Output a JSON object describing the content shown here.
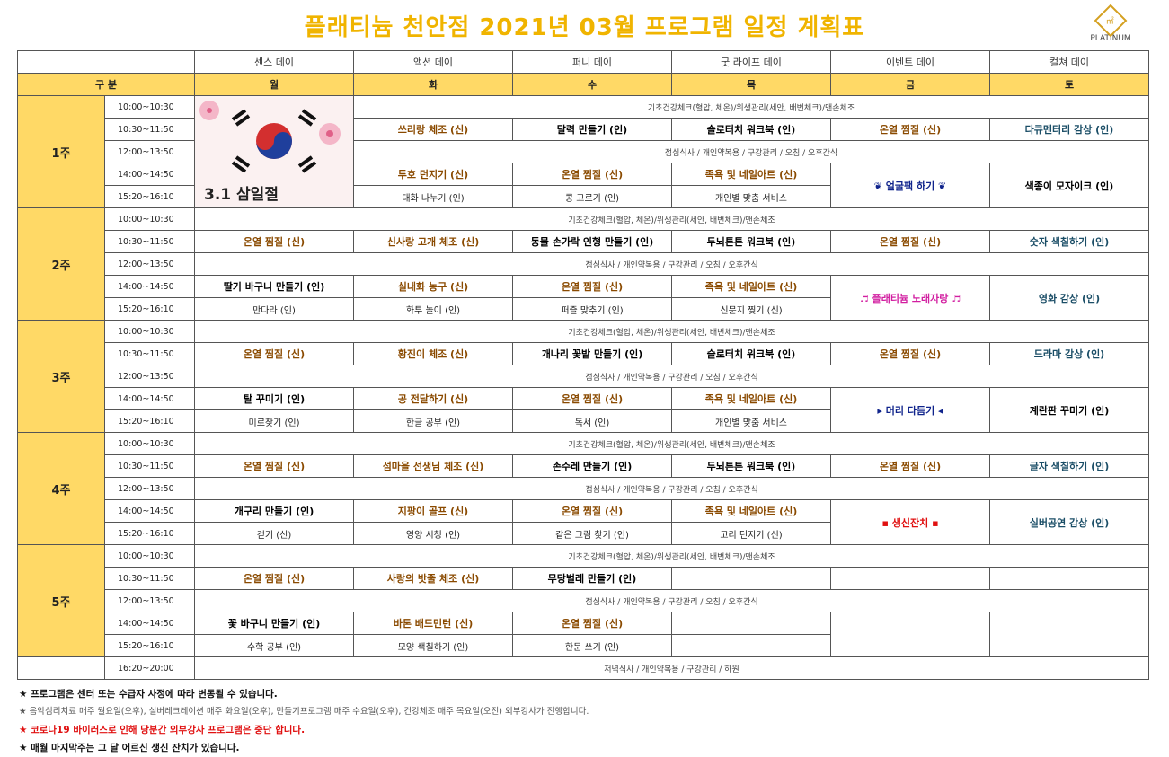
{
  "title": "플래티늄 천안점   2021년 03월  프로그램 일정 계획표",
  "logo": {
    "text": "PLATINUM",
    "mark": "㎡"
  },
  "day_themes": [
    "센스 데이",
    "액션 데이",
    "퍼니 데이",
    "굿 라이프 데이",
    "이벤트 데이",
    "컬쳐 데이"
  ],
  "header": {
    "label": "구 분",
    "days": [
      "월",
      "화",
      "수",
      "목",
      "금",
      "토"
    ]
  },
  "holiday_text": "3.1 삼일절",
  "daily_checkup": "기초건강체크(혈압, 체온)/위생관리(세안, 배변체크)/맨손체조",
  "lunch": "점심식사 / 개인약복용 / 구강관리 / 오침 / 오후간식",
  "evening": {
    "time": "16:20~20:00",
    "text": "저녁식사 / 개인약복용 / 구강관리 / 하원"
  },
  "weeks": [
    {
      "label": "1주",
      "times": [
        "10:00~10:30",
        "10:30~11:50",
        "12:00~13:50",
        "14:00~14:50",
        "15:20~16:10"
      ],
      "am": [
        "",
        "쓰리랑 체조 (신)",
        "달력 만들기 (인)",
        "슬로터치 워크북 (인)",
        "온열 찜질 (신)",
        "다큐멘터리 감상 (인)"
      ],
      "pm1": [
        "",
        "투호 던지기 (신)",
        "온열 찜질 (신)",
        "족욕 및 네일아트 (신)"
      ],
      "pm2": [
        "",
        "대화 나누기 (인)",
        "콩 고르기 (인)",
        "개인별 맞춤 서비스"
      ],
      "fri_pm": "❦ 얼굴팩 하기 ❦",
      "sat_pm": "색종이 모자이크 (인)"
    },
    {
      "label": "2주",
      "times": [
        "10:00~10:30",
        "10:30~11:50",
        "12:00~13:50",
        "14:00~14:50",
        "15:20~16:10"
      ],
      "am": [
        "온열 찜질 (신)",
        "신사랑 고개 체조 (신)",
        "동물 손가락 인형 만들기 (인)",
        "두뇌튼튼 워크북 (인)",
        "온열 찜질 (신)",
        "숫자 색칠하기 (인)"
      ],
      "pm1": [
        "딸기 바구니 만들기 (인)",
        "실내화 농구 (신)",
        "온열 찜질 (신)",
        "족욕 및 네일아트 (신)"
      ],
      "pm2": [
        "만다라 (인)",
        "화투 놀이 (인)",
        "퍼즐 맞추기 (인)",
        "신문지 찢기 (신)"
      ],
      "fri_pm": "♬ 플래티늄 노래자랑 ♬",
      "sat_pm": "영화 감상 (인)"
    },
    {
      "label": "3주",
      "times": [
        "10:00~10:30",
        "10:30~11:50",
        "12:00~13:50",
        "14:00~14:50",
        "15:20~16:10"
      ],
      "am": [
        "온열 찜질 (신)",
        "황진이 체조 (신)",
        "개나리 꽃밭 만들기 (인)",
        "슬로터치 워크북 (인)",
        "온열 찜질 (신)",
        "드라마 감상 (인)"
      ],
      "pm1": [
        "탈 꾸미기 (인)",
        "공 전달하기 (신)",
        "온열 찜질 (신)",
        "족욕 및 네일아트 (신)"
      ],
      "pm2": [
        "미로찾기 (인)",
        "한글 공부 (인)",
        "독서 (인)",
        "개인별 맞춤 서비스"
      ],
      "fri_pm": "▸ 머리 다듬기 ◂",
      "sat_pm": "계란판 꾸미기 (인)"
    },
    {
      "label": "4주",
      "times": [
        "10:00~10:30",
        "10:30~11:50",
        "12:00~13:50",
        "14:00~14:50",
        "15:20~16:10"
      ],
      "am": [
        "온열 찜질 (신)",
        "섬마을 선생님 체조 (신)",
        "손수레 만들기 (인)",
        "두뇌튼튼 워크북 (인)",
        "온열 찜질 (신)",
        "글자 색칠하기 (인)"
      ],
      "pm1": [
        "개구리 만들기 (인)",
        "지팡이 골프 (신)",
        "온열 찜질 (신)",
        "족욕 및 네일아트 (신)"
      ],
      "pm2": [
        "걷기 (신)",
        "영양 시청 (인)",
        "같은 그림 찾기 (인)",
        "고리 던지기 (신)"
      ],
      "fri_pm": "▪ 생신잔치 ▪",
      "sat_pm": "실버공연 감상 (인)"
    },
    {
      "label": "5주",
      "times": [
        "10:00~10:30",
        "10:30~11:50",
        "12:00~13:50",
        "14:00~14:50",
        "15:20~16:10"
      ],
      "am": [
        "온열 찜질 (신)",
        "사랑의 밧줄 체조 (신)",
        "무당벌레 만들기 (인)",
        "",
        "",
        ""
      ],
      "pm1": [
        "꽃 바구니 만들기 (인)",
        "바톤 배드민턴 (신)",
        "온열 찜질 (신)",
        ""
      ],
      "pm2": [
        "수학 공부 (인)",
        "모양 색칠하기 (인)",
        "한문 쓰기 (인)",
        ""
      ],
      "fri_pm": "",
      "sat_pm": ""
    }
  ],
  "notes": [
    "★ 프로그램은 센터 또는 수급자 사정에 따라 변동될 수 있습니다.",
    "★ 음악심리치료 매주 월요일(오후), 실버레크레이션 매주 화요일(오후), 만들기프로그램 매주 수요일(오후), 건강체조 매주 목요일(오전) 외부강사가 진행합니다.",
    "★ 코로나19 바이러스로 인해 당분간 외부강사 프로그램은 중단 합니다.",
    "★ 매월 마지막주는 그 달 어르신 생신 잔치가 있습니다."
  ],
  "colors": {
    "title": "#f0b400",
    "header_bg": "#ffd966",
    "red": "#e01010",
    "pink": "#d21ea0",
    "navy": "#10248c"
  }
}
